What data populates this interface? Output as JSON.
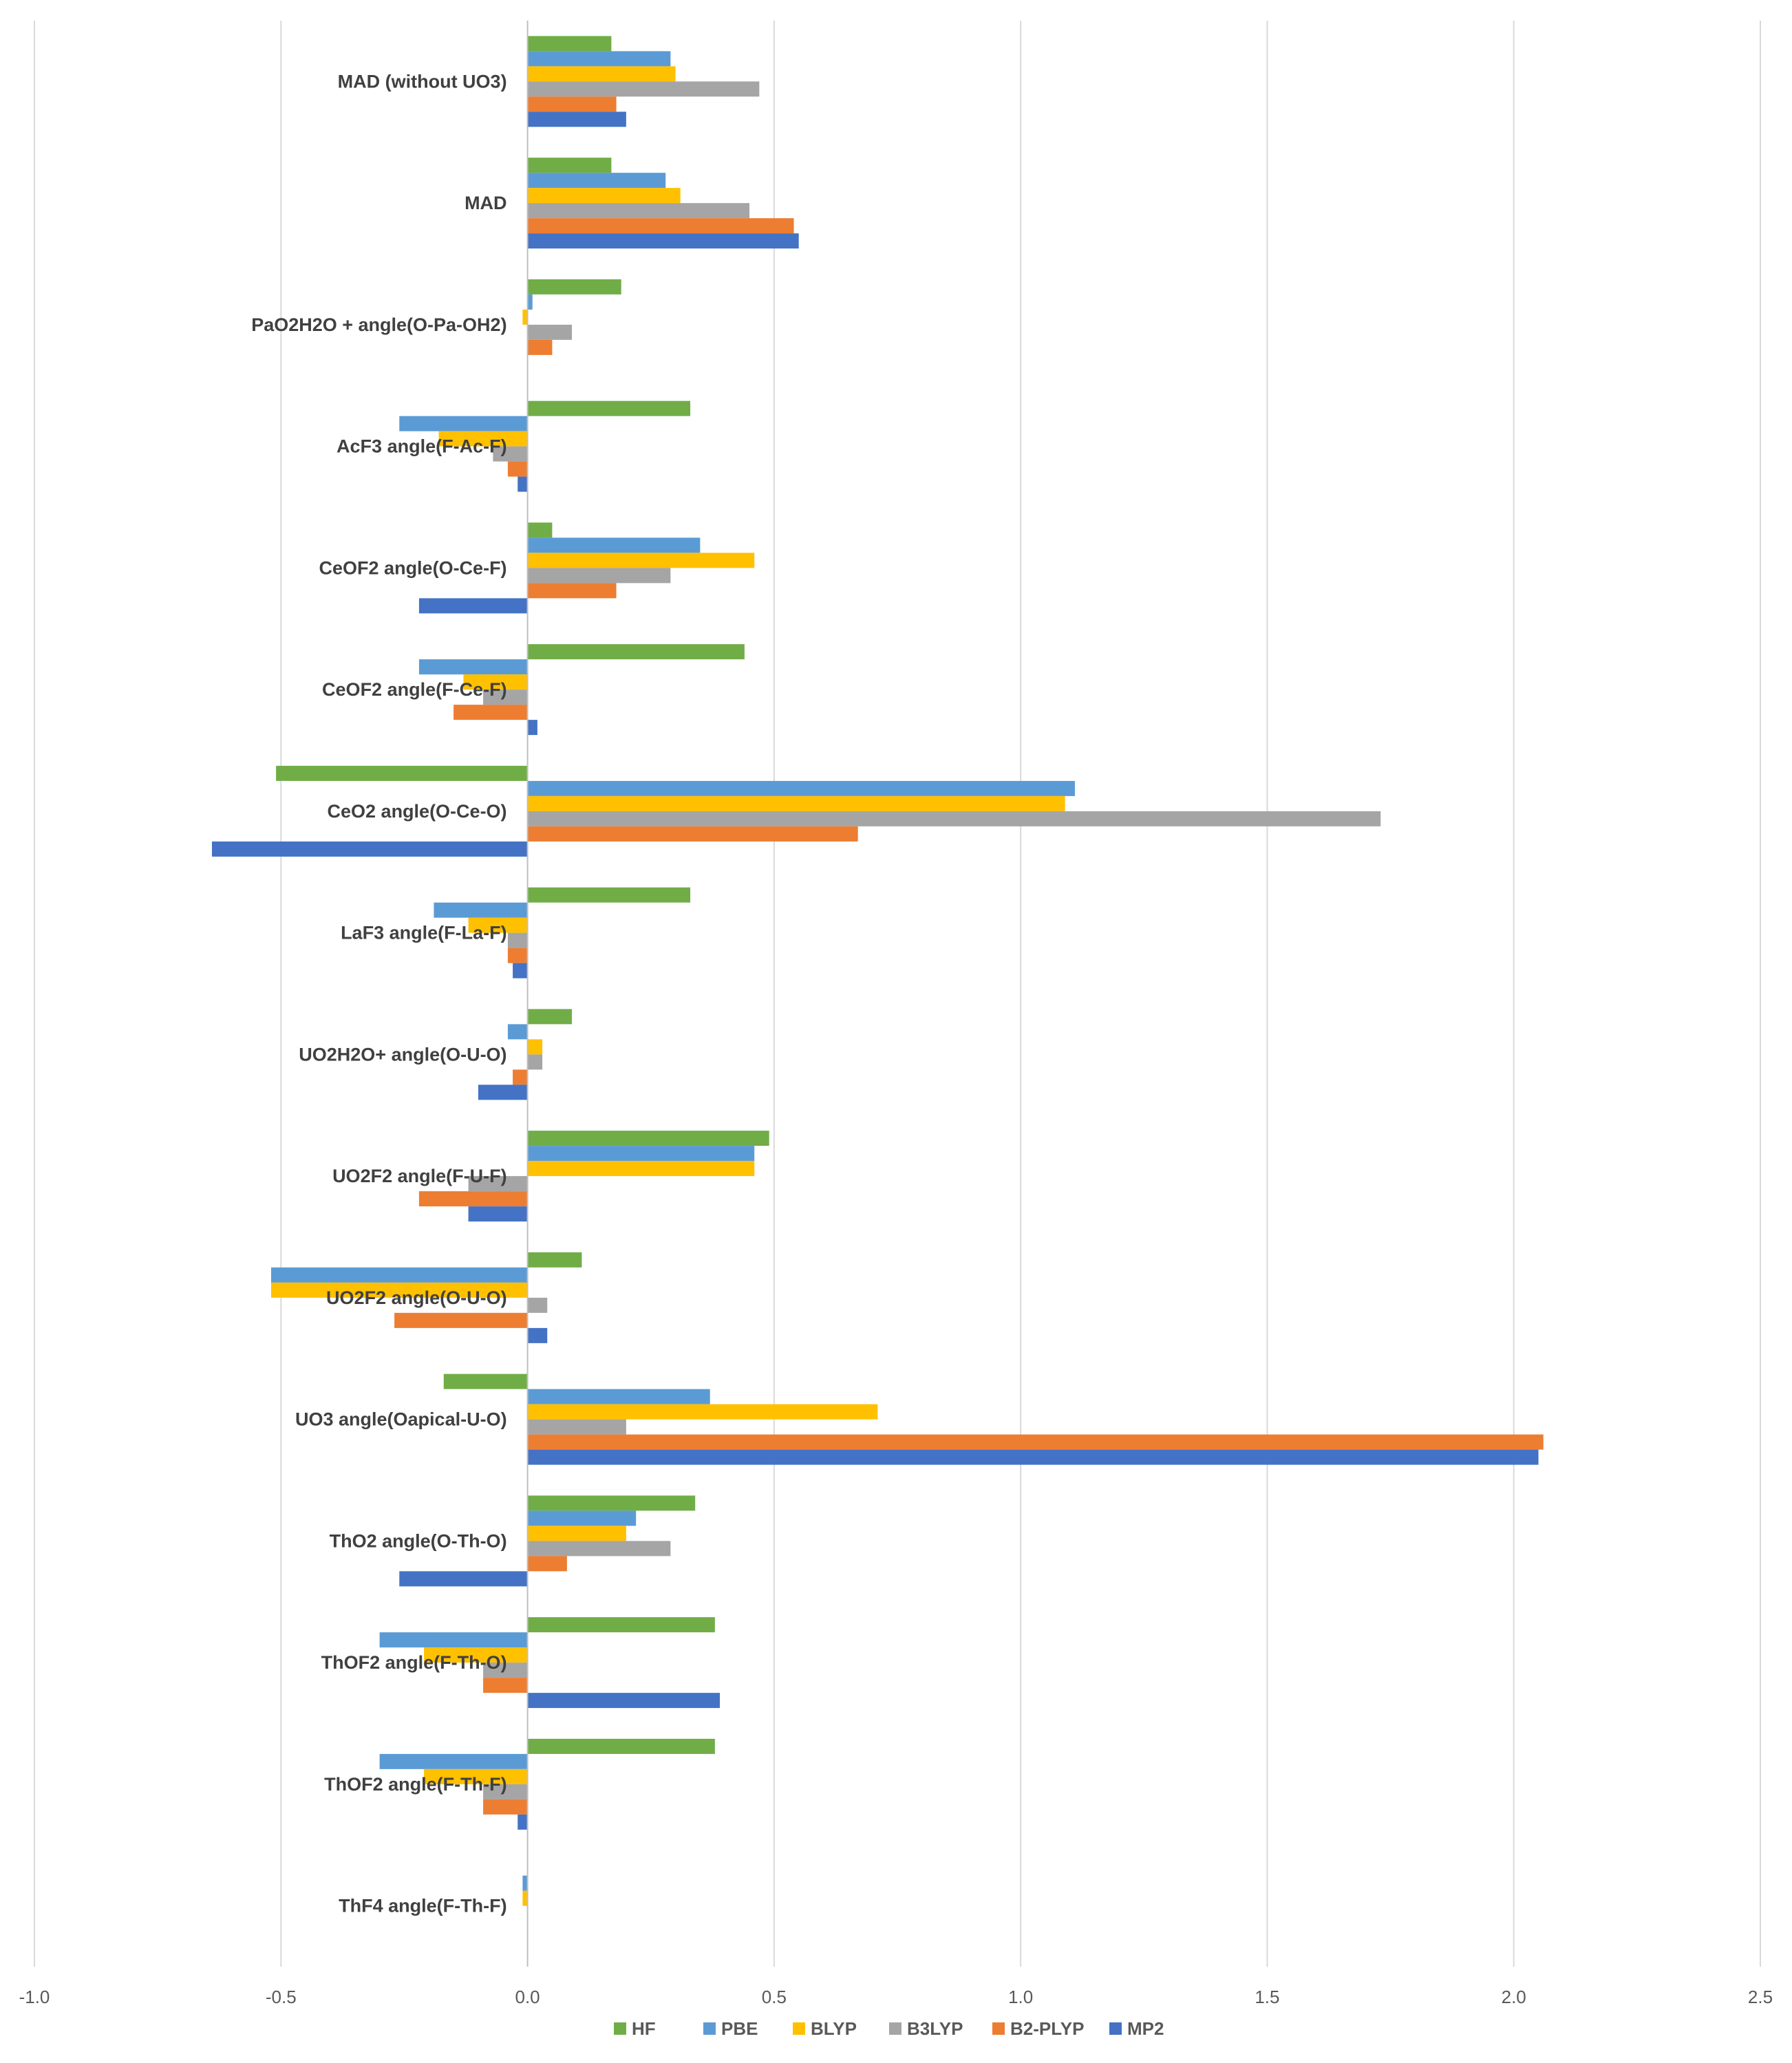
{
  "chart_data": {
    "type": "bar",
    "orientation": "horizontal",
    "title": "",
    "xlabel": "",
    "ylabel": "",
    "xlim": [
      -1.0,
      2.5
    ],
    "x_ticks": [
      "-1.0",
      "-0.5",
      "0.0",
      "0.5",
      "1.0",
      "1.5",
      "2.0",
      "2.5"
    ],
    "grid": "vertical",
    "legend_position": "bottom",
    "categories": [
      "MAD (without UO3)",
      "MAD",
      "PaO2H2O +  angle(O-Pa-OH2)",
      "AcF3 angle(F-Ac-F)",
      "CeOF2 angle(O-Ce-F)",
      "CeOF2 angle(F-Ce-F)",
      "CeO2 angle(O-Ce-O)",
      "LaF3 angle(F-La-F)",
      "UO2H2O+ angle(O-U-O)",
      "UO2F2 angle(F-U-F)",
      "UO2F2 angle(O-U-O)",
      "UO3 angle(Oapical-U-O)",
      "ThO2 angle(O-Th-O)",
      "ThOF2 angle(F-Th-O)",
      "ThOF2 angle(F-Th-F)",
      "ThF4 angle(F-Th-F)"
    ],
    "series": [
      {
        "name": "HF",
        "color": "#70AD47",
        "values": [
          0.17,
          0.17,
          0.19,
          0.33,
          0.05,
          0.44,
          -0.51,
          0.33,
          0.09,
          0.49,
          0.11,
          -0.17,
          0.34,
          0.38,
          0.38,
          0.0
        ]
      },
      {
        "name": "PBE",
        "color": "#5B9BD5",
        "values": [
          0.29,
          0.28,
          0.01,
          -0.26,
          0.35,
          -0.22,
          1.11,
          -0.19,
          -0.04,
          0.46,
          -0.52,
          0.37,
          0.22,
          -0.3,
          -0.3,
          -0.01
        ]
      },
      {
        "name": "BLYP",
        "color": "#FFC000",
        "values": [
          0.3,
          0.31,
          -0.01,
          -0.18,
          0.46,
          -0.13,
          1.09,
          -0.12,
          0.03,
          0.46,
          -0.52,
          0.71,
          0.2,
          -0.21,
          -0.21,
          -0.01
        ]
      },
      {
        "name": "B3LYP",
        "color": "#A5A5A5",
        "values": [
          0.47,
          0.45,
          0.09,
          -0.07,
          0.29,
          -0.09,
          1.73,
          -0.04,
          0.03,
          -0.12,
          0.04,
          0.2,
          0.29,
          -0.09,
          -0.09,
          0.0
        ]
      },
      {
        "name": "B2-PLYP",
        "color": "#ED7D31",
        "values": [
          0.18,
          0.54,
          0.05,
          -0.04,
          0.18,
          -0.15,
          0.67,
          -0.04,
          -0.03,
          -0.22,
          -0.27,
          2.06,
          0.08,
          -0.09,
          -0.09,
          0.0
        ]
      },
      {
        "name": "MP2",
        "color": "#4472C4",
        "values": [
          0.2,
          0.55,
          0.0,
          -0.02,
          -0.22,
          0.02,
          -0.64,
          -0.03,
          -0.1,
          -0.12,
          0.04,
          2.05,
          -0.26,
          0.39,
          -0.02,
          0.0
        ]
      }
    ]
  }
}
